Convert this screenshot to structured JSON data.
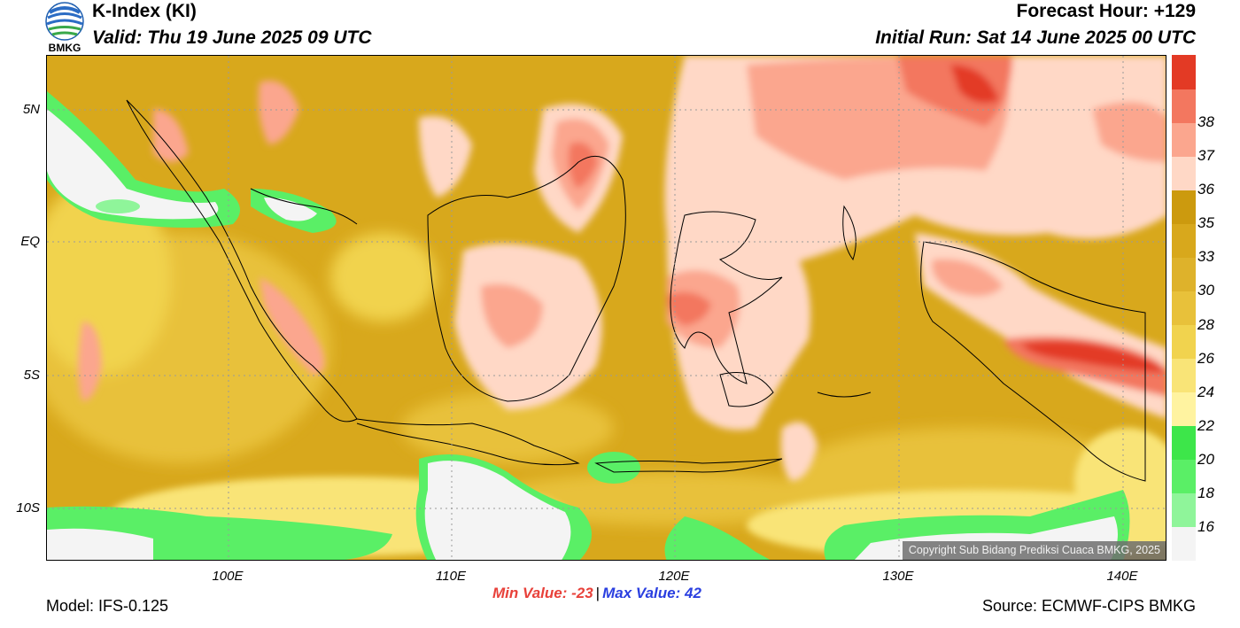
{
  "header": {
    "logo_text": "BMKG",
    "title": "K-Index (KI)",
    "valid": "Valid: Thu 19 June 2025 09 UTC",
    "forecast_hour": "Forecast Hour: +129",
    "initial_run": "Initial Run: Sat 14 June 2025 00 UTC"
  },
  "map": {
    "lat_labels": [
      "5N",
      "EQ",
      "5S",
      "10S"
    ],
    "lon_labels": [
      "100E",
      "110E",
      "120E",
      "130E",
      "140E"
    ],
    "copyright": "Copyright Sub Bidang Prediksi Cuaca BMKG, 2025"
  },
  "legend": {
    "ticks": [
      "16",
      "18",
      "20",
      "22",
      "24",
      "26",
      "28",
      "30",
      "33",
      "35",
      "36",
      "37",
      "38"
    ],
    "colors": [
      "#f4f4f4",
      "#8ff59a",
      "#5aef66",
      "#3de64a",
      "#fff3a0",
      "#f9e477",
      "#f1d34e",
      "#e8c13a",
      "#deb22b",
      "#d8a81c",
      "#cc9a0e",
      "#ffd8c6",
      "#fba68e",
      "#f3775f",
      "#e33a25"
    ]
  },
  "stats": {
    "min": "Min Value: -23",
    "separator": "|",
    "max": "Max Value:  42"
  },
  "footer": {
    "model": "Model: IFS-0.125",
    "source": "Source: ECMWF-CIPS BMKG"
  }
}
